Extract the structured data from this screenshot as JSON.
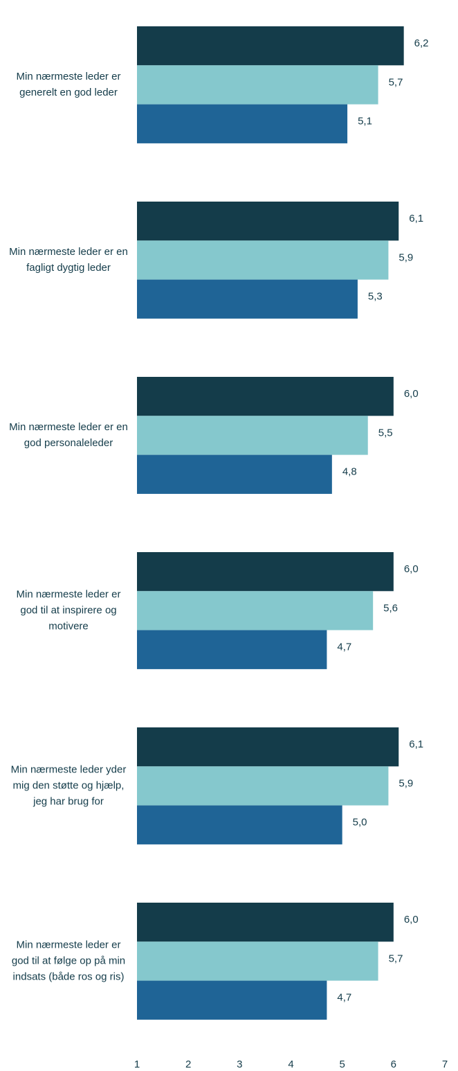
{
  "chart_data": {
    "type": "hbar",
    "categories": [
      "Min nærmeste leder er generelt en god leder",
      "Min nærmeste leder er en fagligt dygtig leder",
      "Min nærmeste leder er en god personaleleder",
      "Min nærmeste leder er god til at inspirere og motivere",
      "Min nærmeste leder yder mig den støtte og hjælp, jeg har brug for",
      "Min nærmeste leder er god til at følge op på min indsats (både ros og ris)"
    ],
    "series": [
      {
        "color": "#143c4a",
        "values": [
          6.2,
          6.1,
          6.0,
          6.0,
          6.1,
          6.0
        ],
        "value_labels": [
          "6,2",
          "6,1",
          "6,0",
          "6,0",
          "6,1",
          "6,0"
        ]
      },
      {
        "color": "#85c8cd",
        "values": [
          5.7,
          5.9,
          5.5,
          5.6,
          5.9,
          5.7
        ],
        "value_labels": [
          "5,7",
          "5,9",
          "5,5",
          "5,6",
          "5,9",
          "5,7"
        ]
      },
      {
        "color": "#1f6496",
        "values": [
          5.1,
          5.3,
          4.8,
          4.7,
          5.0,
          4.7
        ],
        "value_labels": [
          "5,1",
          "5,3",
          "4,8",
          "4,7",
          "5,0",
          "4,7"
        ]
      }
    ],
    "xlim": [
      1,
      7
    ],
    "xticks": [
      1,
      2,
      3,
      4,
      5,
      6,
      7
    ]
  }
}
